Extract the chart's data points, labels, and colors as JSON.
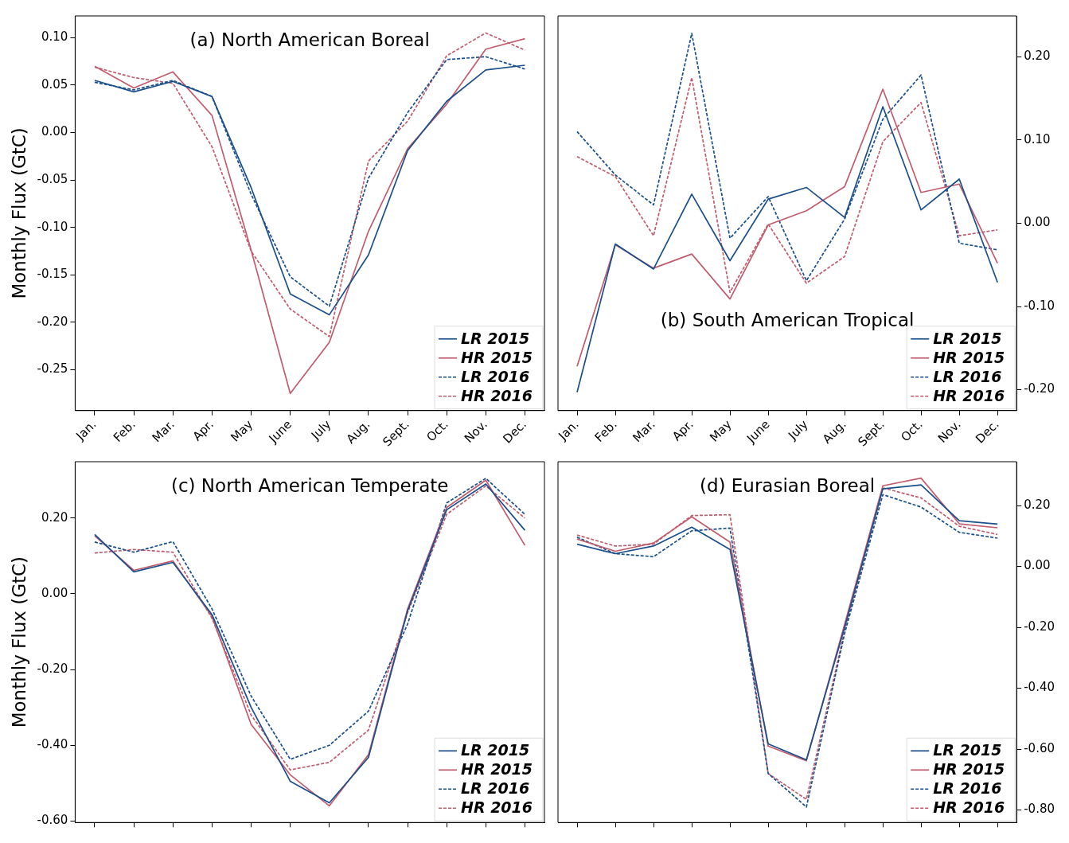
{
  "chart_data": [
    {
      "type": "line",
      "title": "(a) North American Boreal",
      "ylabel": "Monthly Flux (GtC)",
      "legend": "bottom right",
      "grid": false,
      "categories": [
        "Jan.",
        "Feb.",
        "Mar.",
        "Apr.",
        "May",
        "June",
        "July",
        "Aug.",
        "Sept.",
        "Oct.",
        "Nov.",
        "Dec."
      ],
      "ylim": [
        -0.293,
        0.123
      ],
      "yticks": [
        {
          "value": -0.25,
          "label": "-0.25"
        },
        {
          "value": -0.2,
          "label": "-0.20"
        },
        {
          "value": -0.15,
          "label": "-0.15"
        },
        {
          "value": -0.1,
          "label": "-0.10"
        },
        {
          "value": -0.05,
          "label": "-0.05"
        },
        {
          "value": 0,
          "label": "0.00"
        },
        {
          "value": 0.05,
          "label": "0.05"
        },
        {
          "value": 0.1,
          "label": "0.10"
        }
      ],
      "series": [
        {
          "name": "LR 2015",
          "color": "#1a4f8b",
          "line_style": "solid",
          "values": [
            0.055,
            0.043,
            0.054,
            0.038,
            -0.058,
            -0.17,
            -0.192,
            -0.129,
            -0.019,
            0.033,
            0.066,
            0.071
          ]
        },
        {
          "name": "HR 2015",
          "color": "#c15c6e",
          "line_style": "solid",
          "values": [
            0.07,
            0.047,
            0.064,
            0.018,
            -0.124,
            -0.275,
            -0.221,
            -0.104,
            -0.017,
            0.03,
            0.088,
            0.099
          ]
        },
        {
          "name": "LR 2016",
          "color": "#1a4f8b",
          "line_style": "dashed",
          "values": [
            0.053,
            0.045,
            0.055,
            0.038,
            -0.065,
            -0.152,
            -0.183,
            -0.048,
            0.021,
            0.077,
            0.08,
            0.067
          ]
        },
        {
          "name": "HR 2016",
          "color": "#c15c6e",
          "line_style": "dashed",
          "values": [
            0.069,
            0.058,
            0.052,
            -0.015,
            -0.125,
            -0.186,
            -0.215,
            -0.03,
            0.012,
            0.081,
            0.105,
            0.087
          ]
        }
      ]
    },
    {
      "type": "line",
      "title": "(b) South American Tropical",
      "legend": "bottom right",
      "grid": false,
      "categories": [
        "Jan.",
        "Feb.",
        "Mar.",
        "Apr.",
        "May",
        "June",
        "July",
        "Aug.",
        "Sept.",
        "Oct.",
        "Nov.",
        "Dec."
      ],
      "y2lim": [
        -0.225,
        0.249
      ],
      "y2ticks": [
        {
          "value": -0.2,
          "label": "-0.20"
        },
        {
          "value": -0.1,
          "label": "-0.10"
        },
        {
          "value": 0,
          "label": "0.00"
        },
        {
          "value": 0.1,
          "label": "0.10"
        },
        {
          "value": 0.2,
          "label": "0.20"
        }
      ],
      "series": [
        {
          "name": "LR 2015",
          "color": "#1a4f8b",
          "line_style": "solid",
          "axis": "y2",
          "values": [
            -0.203,
            -0.025,
            -0.055,
            0.035,
            -0.045,
            0.029,
            0.043,
            0.007,
            0.14,
            0.016,
            0.053,
            -0.071
          ]
        },
        {
          "name": "HR 2015",
          "color": "#c15c6e",
          "line_style": "solid",
          "axis": "y2",
          "values": [
            -0.172,
            -0.026,
            -0.054,
            -0.037,
            -0.091,
            -0.002,
            0.015,
            0.044,
            0.161,
            0.037,
            0.047,
            -0.048
          ]
        },
        {
          "name": "LR 2016",
          "color": "#1a4f8b",
          "line_style": "dashed",
          "axis": "y2",
          "values": [
            0.11,
            0.058,
            0.022,
            0.228,
            -0.018,
            0.032,
            -0.069,
            0.005,
            0.125,
            0.178,
            -0.024,
            -0.032
          ]
        },
        {
          "name": "HR 2016",
          "color": "#c15c6e",
          "line_style": "dashed",
          "axis": "y2",
          "values": [
            0.08,
            0.056,
            -0.015,
            0.175,
            -0.083,
            -0.001,
            -0.072,
            -0.04,
            0.098,
            0.145,
            -0.015,
            -0.008
          ]
        }
      ]
    },
    {
      "type": "line",
      "title": "(c) North American Temperate",
      "ylabel": "Monthly Flux (GtC)",
      "legend": "bottom right",
      "grid": false,
      "categories": [
        null,
        null,
        null,
        null,
        null,
        null,
        null,
        null,
        null,
        null,
        null,
        null
      ],
      "ylim": [
        -0.604,
        0.349
      ],
      "yticks": [
        {
          "value": -0.6,
          "label": "-0.60"
        },
        {
          "value": -0.4,
          "label": "-0.40"
        },
        {
          "value": -0.2,
          "label": "-0.20"
        },
        {
          "value": 0,
          "label": "0.00"
        },
        {
          "value": 0.2,
          "label": "0.20"
        }
      ],
      "series": [
        {
          "name": "LR 2015",
          "color": "#1a4f8b",
          "line_style": "solid",
          "values": [
            0.157,
            0.058,
            0.083,
            -0.055,
            -0.3,
            -0.495,
            -0.552,
            -0.432,
            -0.045,
            0.222,
            0.29,
            0.168
          ]
        },
        {
          "name": "HR 2015",
          "color": "#c15c6e",
          "line_style": "solid",
          "values": [
            0.153,
            0.062,
            0.087,
            -0.06,
            -0.345,
            -0.478,
            -0.56,
            -0.425,
            -0.04,
            0.228,
            0.3,
            0.128
          ]
        },
        {
          "name": "LR 2016",
          "color": "#1a4f8b",
          "line_style": "dashed",
          "values": [
            0.137,
            0.11,
            0.138,
            -0.04,
            -0.27,
            -0.437,
            -0.4,
            -0.31,
            -0.08,
            0.24,
            0.305,
            0.21
          ]
        },
        {
          "name": "HR 2016",
          "color": "#c15c6e",
          "line_style": "dashed",
          "values": [
            0.108,
            0.117,
            0.11,
            -0.065,
            -0.32,
            -0.465,
            -0.445,
            -0.36,
            -0.05,
            0.21,
            0.285,
            0.2
          ]
        }
      ]
    },
    {
      "type": "line",
      "title": "(d) Eurasian Boreal",
      "legend": "bottom right",
      "grid": false,
      "categories": [
        null,
        null,
        null,
        null,
        null,
        null,
        null,
        null,
        null,
        null,
        null,
        null
      ],
      "ylim": [
        -0.841,
        0.344
      ],
      "yticks": [
        {
          "value": -0.8,
          "label": "-0.80"
        },
        {
          "value": -0.6,
          "label": "-0.60"
        },
        {
          "value": -0.4,
          "label": "-0.40"
        },
        {
          "value": -0.2,
          "label": "-0.20"
        },
        {
          "value": 0,
          "label": "0.00"
        },
        {
          "value": 0.2,
          "label": "0.20"
        }
      ],
      "series": [
        {
          "name": "LR 2015",
          "color": "#1a4f8b",
          "line_style": "solid",
          "values": [
            0.073,
            0.042,
            0.067,
            0.129,
            0.056,
            -0.583,
            -0.635,
            -0.2,
            0.255,
            0.268,
            0.15,
            0.139
          ]
        },
        {
          "name": "HR 2015",
          "color": "#c15c6e",
          "line_style": "solid",
          "values": [
            0.09,
            0.05,
            0.077,
            0.163,
            0.08,
            -0.59,
            -0.638,
            -0.19,
            0.265,
            0.29,
            0.14,
            0.127
          ]
        },
        {
          "name": "LR 2016",
          "color": "#1a4f8b",
          "line_style": "dashed",
          "values": [
            0.096,
            0.042,
            0.032,
            0.117,
            0.126,
            -0.68,
            -0.79,
            -0.22,
            0.236,
            0.195,
            0.112,
            0.093
          ]
        },
        {
          "name": "HR 2016",
          "color": "#c15c6e",
          "line_style": "dashed",
          "values": [
            0.103,
            0.067,
            0.073,
            0.167,
            0.17,
            -0.68,
            -0.765,
            -0.21,
            0.258,
            0.225,
            0.132,
            0.105
          ]
        }
      ]
    }
  ]
}
